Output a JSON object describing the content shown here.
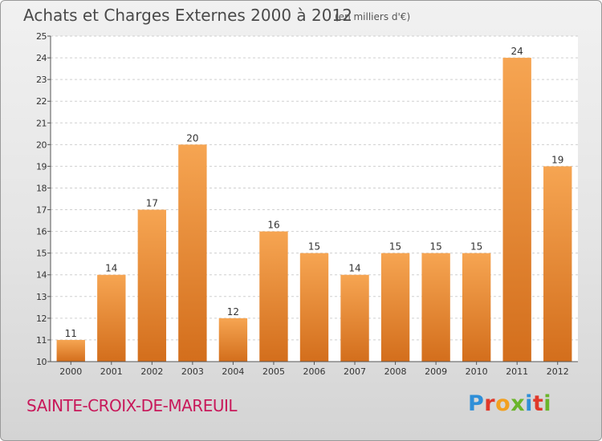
{
  "header": {
    "title": "Achats et Charges Externes 2000 à 2012",
    "unit": "(en milliers d'€)"
  },
  "footer": {
    "commune": "SAINTE-CROIX-DE-MAREUIL",
    "logo_letters": [
      "P",
      "r",
      "o",
      "x",
      "i",
      "t",
      "i"
    ]
  },
  "colors": {
    "bar_top": "#f6a552",
    "bar_bottom": "#d36e1c",
    "logo": [
      "#2f8fd8",
      "#e0382a",
      "#f2a020",
      "#6ab52a",
      "#2f8fd8",
      "#e0382a",
      "#6ab52a"
    ],
    "commune": "#c8185a"
  },
  "chart_data": {
    "type": "bar",
    "categories": [
      "2000",
      "2001",
      "2002",
      "2003",
      "2004",
      "2005",
      "2006",
      "2007",
      "2008",
      "2009",
      "2010",
      "2011",
      "2012"
    ],
    "values": [
      11,
      14,
      17,
      20,
      12,
      16,
      15,
      14,
      15,
      15,
      15,
      24,
      19
    ],
    "ylim": [
      10,
      25
    ],
    "yticks": [
      10,
      11,
      12,
      13,
      14,
      15,
      16,
      17,
      18,
      19,
      20,
      21,
      22,
      23,
      24,
      25
    ],
    "grid": true,
    "title": "Achats et Charges Externes 2000 à 2012",
    "xlabel": "",
    "ylabel": ""
  }
}
